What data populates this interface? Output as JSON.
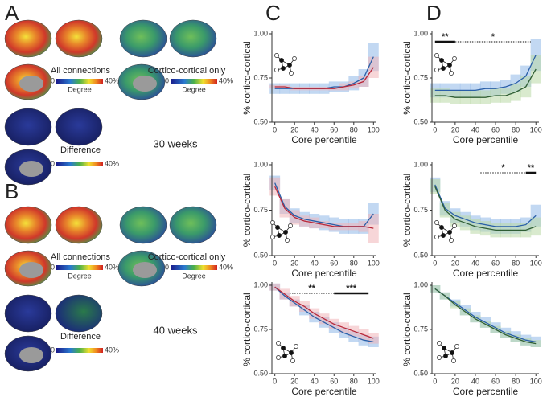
{
  "panel_labels": [
    "A",
    "B",
    "C",
    "D"
  ],
  "brain_panels": [
    {
      "left_title": "All connections",
      "right_title": "Cortico-cortical only",
      "colorbar_label": "Degree",
      "colorbar_min": "0",
      "colorbar_max": "40%",
      "difference": "Difference",
      "age": "30 weeks"
    },
    {
      "left_title": "All connections",
      "right_title": "Cortico-cortical only",
      "colorbar_label": "Degree",
      "colorbar_min": "0",
      "colorbar_max": "40%",
      "difference": "Difference",
      "age": "40 weeks"
    }
  ],
  "chart_data": [
    {
      "type": "line",
      "xlabel": "Core percentile",
      "ylabel": "% cortico-cortical",
      "x": [
        0,
        10,
        20,
        30,
        40,
        50,
        60,
        70,
        80,
        90,
        100
      ],
      "xlim": [
        -3,
        103
      ],
      "xticks": [
        0,
        20,
        40,
        60,
        80,
        100
      ],
      "ylim": [
        0.5,
        1.0
      ],
      "yticks": [
        {
          "value": 0.5,
          "label": "0.50"
        },
        {
          "value": 0.75,
          "label": "0.75"
        },
        {
          "value": 1.0,
          "label": "1.00"
        }
      ],
      "series": [
        {
          "color": "#2a5fa8",
          "band_color": "#8fb8e8",
          "values": [
            0.69,
            0.69,
            0.69,
            0.69,
            0.69,
            0.69,
            0.7,
            0.7,
            0.72,
            0.75,
            0.87
          ],
          "errors": [
            0.03,
            0.03,
            0.03,
            0.03,
            0.03,
            0.03,
            0.03,
            0.03,
            0.04,
            0.05,
            0.08
          ]
        },
        {
          "color": "#b8283a",
          "band_color": "#f0b4b8",
          "values": [
            0.7,
            0.7,
            0.69,
            0.69,
            0.69,
            0.69,
            0.69,
            0.7,
            0.71,
            0.73,
            0.81
          ],
          "errors": [
            0.01,
            0.01,
            0.01,
            0.01,
            0.01,
            0.01,
            0.01,
            0.02,
            0.02,
            0.03,
            0.06
          ]
        }
      ],
      "annotations": []
    },
    {
      "type": "line",
      "xlabel": "Core percentile",
      "ylabel": "% cortico-cortical",
      "x": [
        0,
        10,
        20,
        30,
        40,
        50,
        60,
        70,
        80,
        90,
        100
      ],
      "xlim": [
        -3,
        103
      ],
      "xticks": [
        0,
        20,
        40,
        60,
        80,
        100
      ],
      "ylim": [
        0.5,
        1.0
      ],
      "yticks": [
        {
          "value": 0.5,
          "label": "0.50"
        },
        {
          "value": 0.75,
          "label": "0.75"
        },
        {
          "value": 1.0,
          "label": "1.00"
        }
      ],
      "series": [
        {
          "color": "#2a5fa8",
          "band_color": "#8fb8e8",
          "values": [
            0.9,
            0.77,
            0.72,
            0.7,
            0.69,
            0.68,
            0.67,
            0.66,
            0.66,
            0.66,
            0.73
          ],
          "errors": [
            0.04,
            0.04,
            0.04,
            0.04,
            0.04,
            0.04,
            0.04,
            0.04,
            0.04,
            0.04,
            0.06
          ]
        },
        {
          "color": "#b8283a",
          "band_color": "#f0b4b8",
          "values": [
            0.88,
            0.76,
            0.71,
            0.69,
            0.68,
            0.67,
            0.66,
            0.66,
            0.66,
            0.66,
            0.65
          ],
          "errors": [
            0.05,
            0.05,
            0.04,
            0.03,
            0.03,
            0.02,
            0.02,
            0.02,
            0.02,
            0.03,
            0.08
          ]
        }
      ],
      "annotations": []
    },
    {
      "type": "line",
      "xlabel": "Core percentile",
      "ylabel": "% cortico-cortical",
      "x": [
        0,
        10,
        20,
        30,
        40,
        50,
        60,
        70,
        80,
        90,
        100
      ],
      "xlim": [
        -3,
        103
      ],
      "xticks": [
        0,
        20,
        40,
        60,
        80,
        100
      ],
      "ylim": [
        0.5,
        1.0
      ],
      "yticks": [
        {
          "value": 0.5,
          "label": "0.50"
        },
        {
          "value": 0.75,
          "label": "0.75"
        },
        {
          "value": 1.0,
          "label": "1.00"
        }
      ],
      "series": [
        {
          "color": "#2a5fa8",
          "band_color": "#8fb8e8",
          "values": [
            0.99,
            0.94,
            0.9,
            0.86,
            0.82,
            0.79,
            0.76,
            0.73,
            0.71,
            0.69,
            0.68
          ],
          "errors": [
            0.02,
            0.02,
            0.02,
            0.03,
            0.03,
            0.03,
            0.03,
            0.03,
            0.03,
            0.03,
            0.03
          ]
        },
        {
          "color": "#b8283a",
          "band_color": "#f0b4b8",
          "values": [
            0.99,
            0.95,
            0.91,
            0.88,
            0.84,
            0.81,
            0.78,
            0.76,
            0.74,
            0.72,
            0.7
          ],
          "errors": [
            0.02,
            0.03,
            0.03,
            0.03,
            0.03,
            0.03,
            0.03,
            0.03,
            0.03,
            0.03,
            0.03
          ]
        }
      ],
      "annotations": [
        {
          "text": "**",
          "xrange": [
            15,
            60
          ],
          "style": "dotted"
        },
        {
          "text": "***",
          "xrange": [
            60,
            95
          ],
          "style": "solid"
        }
      ]
    },
    {
      "type": "line",
      "xlabel": "Core percentile",
      "ylabel": "% cortico-cortical",
      "x": [
        0,
        10,
        20,
        30,
        40,
        50,
        60,
        70,
        80,
        90,
        100
      ],
      "xlim": [
        -3,
        103
      ],
      "xticks": [
        0,
        20,
        40,
        60,
        80,
        100
      ],
      "ylim": [
        0.5,
        1.0
      ],
      "yticks": [
        {
          "value": 0.5,
          "label": "0.50"
        },
        {
          "value": 0.75,
          "label": "0.75"
        },
        {
          "value": 1.0,
          "label": "1.00"
        }
      ],
      "series": [
        {
          "color": "#2a5fa8",
          "band_color": "#8fb8e8",
          "values": [
            0.68,
            0.68,
            0.68,
            0.68,
            0.68,
            0.69,
            0.69,
            0.7,
            0.72,
            0.76,
            0.88
          ],
          "errors": [
            0.04,
            0.04,
            0.04,
            0.04,
            0.04,
            0.04,
            0.04,
            0.04,
            0.05,
            0.06,
            0.09
          ]
        },
        {
          "color": "#2f5e34",
          "band_color": "#b9d9a6",
          "values": [
            0.65,
            0.65,
            0.64,
            0.64,
            0.64,
            0.64,
            0.65,
            0.65,
            0.67,
            0.7,
            0.8
          ],
          "errors": [
            0.04,
            0.04,
            0.04,
            0.04,
            0.04,
            0.04,
            0.04,
            0.04,
            0.05,
            0.06,
            0.08
          ]
        }
      ],
      "annotations": [
        {
          "text": "**",
          "xrange": [
            0,
            20
          ],
          "style": "solid"
        },
        {
          "text": "*",
          "xrange": [
            20,
            95
          ],
          "style": "dotted"
        }
      ]
    },
    {
      "type": "line",
      "xlabel": "Core percentile",
      "ylabel": "% cortico-cortical",
      "x": [
        0,
        10,
        20,
        30,
        40,
        50,
        60,
        70,
        80,
        90,
        100
      ],
      "xlim": [
        -3,
        103
      ],
      "xticks": [
        0,
        20,
        40,
        60,
        80,
        100
      ],
      "ylim": [
        0.5,
        1.0
      ],
      "yticks": [
        {
          "value": 0.5,
          "label": "0.50"
        },
        {
          "value": 0.75,
          "label": "0.75"
        },
        {
          "value": 1.0,
          "label": "1.00"
        }
      ],
      "series": [
        {
          "color": "#2a5fa8",
          "band_color": "#8fb8e8",
          "values": [
            0.89,
            0.76,
            0.72,
            0.7,
            0.68,
            0.67,
            0.66,
            0.66,
            0.66,
            0.67,
            0.72
          ],
          "errors": [
            0.04,
            0.04,
            0.04,
            0.04,
            0.04,
            0.04,
            0.04,
            0.04,
            0.04,
            0.04,
            0.06
          ]
        },
        {
          "color": "#2f5e34",
          "band_color": "#b9d9a6",
          "values": [
            0.88,
            0.75,
            0.7,
            0.68,
            0.66,
            0.65,
            0.64,
            0.64,
            0.64,
            0.64,
            0.66
          ],
          "errors": [
            0.04,
            0.04,
            0.04,
            0.04,
            0.04,
            0.04,
            0.04,
            0.04,
            0.04,
            0.04,
            0.05
          ]
        }
      ],
      "annotations": [
        {
          "text": "*",
          "xrange": [
            45,
            90
          ],
          "style": "dotted"
        },
        {
          "text": "**",
          "xrange": [
            90,
            100
          ],
          "style": "solid"
        }
      ]
    },
    {
      "type": "line",
      "xlabel": "Core percentile",
      "ylabel": "% cortico-cortical",
      "x": [
        0,
        10,
        20,
        30,
        40,
        50,
        60,
        70,
        80,
        90,
        100
      ],
      "xlim": [
        -3,
        103
      ],
      "xticks": [
        0,
        20,
        40,
        60,
        80,
        100
      ],
      "ylim": [
        0.5,
        1.0
      ],
      "yticks": [
        {
          "value": 0.5,
          "label": "0.50"
        },
        {
          "value": 0.75,
          "label": "0.75"
        },
        {
          "value": 1.0,
          "label": "1.00"
        }
      ],
      "series": [
        {
          "color": "#2a5fa8",
          "band_color": "#8fb8e8",
          "values": [
            0.98,
            0.94,
            0.9,
            0.86,
            0.82,
            0.79,
            0.76,
            0.73,
            0.71,
            0.69,
            0.68
          ],
          "errors": [
            0.02,
            0.02,
            0.02,
            0.03,
            0.03,
            0.03,
            0.03,
            0.03,
            0.03,
            0.03,
            0.03
          ]
        },
        {
          "color": "#2f5e34",
          "band_color": "#b9d9a6",
          "values": [
            0.98,
            0.94,
            0.89,
            0.85,
            0.81,
            0.78,
            0.75,
            0.72,
            0.7,
            0.68,
            0.67
          ],
          "errors": [
            0.02,
            0.02,
            0.02,
            0.02,
            0.02,
            0.02,
            0.02,
            0.02,
            0.02,
            0.02,
            0.02
          ]
        }
      ],
      "annotations": []
    }
  ]
}
